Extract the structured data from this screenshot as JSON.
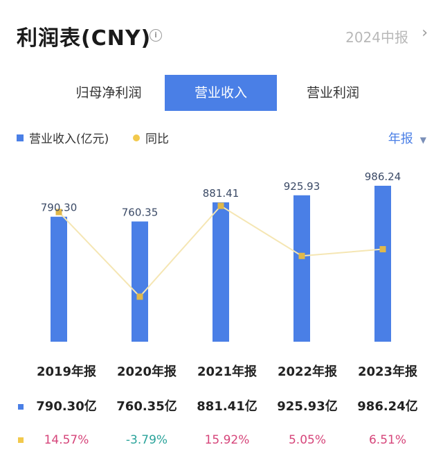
{
  "header": {
    "title": "利润表(CNY)",
    "info_icon": "info-icon",
    "period": "2024中报",
    "chevron_icon": "chevron-right-icon"
  },
  "tabs": [
    {
      "label": "归母净利润",
      "active": false
    },
    {
      "label": "营业收入",
      "active": true
    },
    {
      "label": "营业利润",
      "active": false
    }
  ],
  "legend": {
    "bar_label": "营业收入(亿元)",
    "line_label": "同比",
    "period_select": "年报",
    "caret_icon": "caret-down-icon"
  },
  "colors": {
    "bar": "#4a7fe6",
    "line": "#f5e6b3",
    "point": "#e0b84a",
    "positive": "#d6457a",
    "negative": "#2aa39a"
  },
  "chart_data": {
    "type": "bar",
    "categories": [
      "2019年报",
      "2020年报",
      "2021年报",
      "2022年报",
      "2023年报"
    ],
    "series": [
      {
        "name": "营业收入(亿元)",
        "type": "bar",
        "values": [
          790.3,
          760.35,
          881.41,
          925.93,
          986.24
        ]
      },
      {
        "name": "同比",
        "type": "line",
        "values": [
          14.57,
          -3.79,
          15.92,
          5.05,
          6.51
        ]
      }
    ],
    "bar_labels": [
      "790.30",
      "760.35",
      "881.41",
      "925.93",
      "986.24"
    ],
    "table": {
      "revenue": [
        "790.30亿",
        "760.35亿",
        "881.41亿",
        "925.93亿",
        "986.24亿"
      ],
      "yoy": [
        "14.57%",
        "-3.79%",
        "15.92%",
        "5.05%",
        "6.51%"
      ]
    }
  }
}
